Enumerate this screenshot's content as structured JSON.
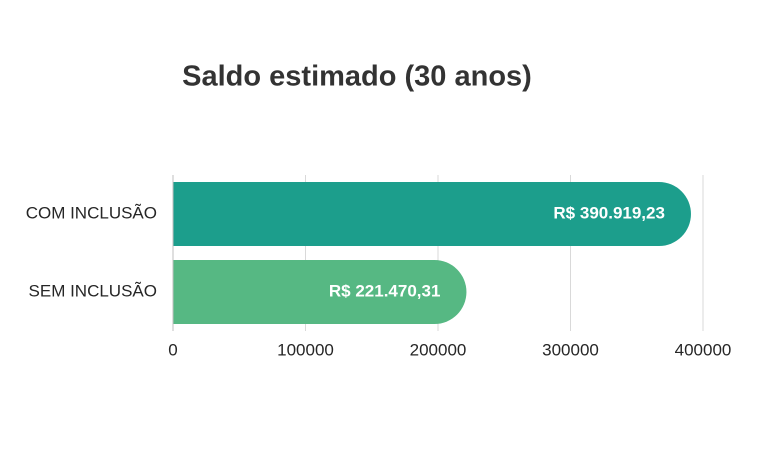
{
  "chart_data": {
    "type": "bar",
    "orientation": "horizontal",
    "title": "Saldo estimado (30 anos)",
    "categories": [
      "COM INCLUSÃO",
      "SEM INCLUSÃO"
    ],
    "values": [
      390919.23,
      221470.31
    ],
    "value_labels": [
      "R$ 390.919,23",
      "R$ 221.470,31"
    ],
    "colors": [
      "#1c9e8c",
      "#56b883"
    ],
    "xlim": [
      0,
      400000
    ],
    "xticks": [
      0,
      100000,
      200000,
      300000,
      400000
    ],
    "grid": true
  }
}
